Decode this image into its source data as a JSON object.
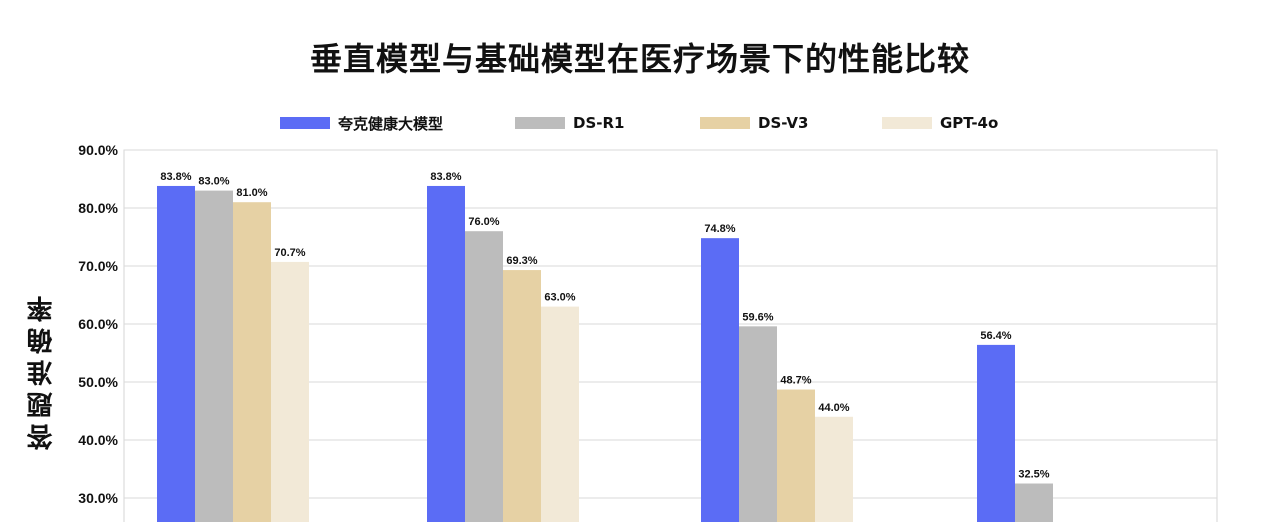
{
  "chart_data": {
    "type": "bar",
    "title": "垂直模型与基础模型在医疗场景下的性能比较",
    "ylabel": "答题准确率",
    "ylim": [
      30,
      90
    ],
    "yticks": [
      "90.0%",
      "80.0%",
      "70.0%",
      "60.0%",
      "50.0%",
      "40.0%",
      "30.0%"
    ],
    "grid": true,
    "legend_position": "top",
    "categories": [
      "",
      "",
      "",
      ""
    ],
    "series": [
      {
        "name": "夸克健康大模型",
        "color": "#5b6cf5",
        "values": [
          83.8,
          83.8,
          74.8,
          56.4
        ],
        "labels": [
          "83.8%",
          "83.8%",
          "74.8%",
          "56.4%"
        ]
      },
      {
        "name": "DS-R1",
        "color": "#bcbcbc",
        "values": [
          83.0,
          76.0,
          59.6,
          32.5
        ],
        "labels": [
          "83.0%",
          "76.0%",
          "59.6%",
          "32.5%"
        ]
      },
      {
        "name": "DS-V3",
        "color": "#e6d1a4",
        "values": [
          81.0,
          69.3,
          48.7,
          null
        ],
        "labels": [
          "81.0%",
          "69.3%",
          "48.7%",
          ""
        ]
      },
      {
        "name": "GPT-4o",
        "color": "#f2e9d7",
        "values": [
          70.7,
          63.0,
          44.0,
          null
        ],
        "labels": [
          "70.7%",
          "63.0%",
          "44.0%",
          ""
        ]
      }
    ]
  }
}
